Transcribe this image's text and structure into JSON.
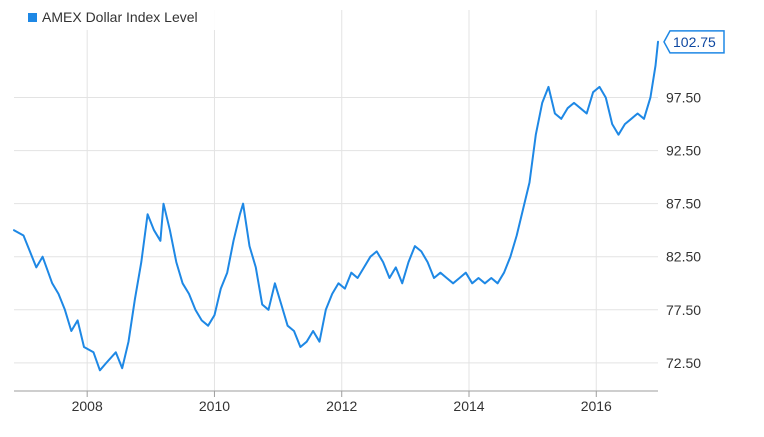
{
  "chart_data": {
    "type": "line",
    "title": "",
    "xlabel": "",
    "ylabel": "",
    "legend": {
      "placement": "top-left",
      "marker": "square"
    },
    "grid": true,
    "xlim": [
      2006.85,
      2016.97
    ],
    "ylim": [
      69.85,
      105.75
    ],
    "x_ticks": [
      2008,
      2010,
      2012,
      2014,
      2016
    ],
    "x_tick_labels": [
      "2008",
      "2010",
      "2012",
      "2014",
      "2016"
    ],
    "y_ticks": [
      72.5,
      77.5,
      82.5,
      87.5,
      92.5,
      97.5
    ],
    "y_tick_labels": [
      "72.50",
      "77.50",
      "82.50",
      "87.50",
      "92.50",
      "97.50"
    ],
    "last_value_label": "102.75",
    "series": [
      {
        "name": "AMEX Dollar Index Level",
        "color": "#1e88e5",
        "x": [
          2006.85,
          2007.0,
          2007.1,
          2007.2,
          2007.3,
          2007.45,
          2007.55,
          2007.65,
          2007.75,
          2007.85,
          2007.95,
          2008.1,
          2008.2,
          2008.3,
          2008.45,
          2008.55,
          2008.65,
          2008.75,
          2008.85,
          2008.95,
          2009.05,
          2009.15,
          2009.2,
          2009.3,
          2009.4,
          2009.5,
          2009.6,
          2009.7,
          2009.8,
          2009.9,
          2010.0,
          2010.1,
          2010.2,
          2010.3,
          2010.4,
          2010.45,
          2010.55,
          2010.65,
          2010.75,
          2010.85,
          2010.95,
          2011.05,
          2011.15,
          2011.25,
          2011.35,
          2011.45,
          2011.55,
          2011.65,
          2011.75,
          2011.85,
          2011.95,
          2012.05,
          2012.15,
          2012.25,
          2012.35,
          2012.45,
          2012.55,
          2012.65,
          2012.75,
          2012.85,
          2012.95,
          2013.05,
          2013.15,
          2013.25,
          2013.35,
          2013.45,
          2013.55,
          2013.65,
          2013.75,
          2013.85,
          2013.95,
          2014.05,
          2014.15,
          2014.25,
          2014.35,
          2014.45,
          2014.55,
          2014.65,
          2014.75,
          2014.85,
          2014.95,
          2015.05,
          2015.15,
          2015.25,
          2015.35,
          2015.45,
          2015.55,
          2015.65,
          2015.75,
          2015.85,
          2015.95,
          2016.05,
          2016.15,
          2016.25,
          2016.35,
          2016.45,
          2016.55,
          2016.65,
          2016.75,
          2016.85,
          2016.93,
          2016.97
        ],
        "values": [
          85.0,
          84.5,
          83.0,
          81.5,
          82.5,
          80.0,
          79.0,
          77.5,
          75.5,
          76.5,
          74.0,
          73.5,
          71.8,
          72.5,
          73.5,
          72.0,
          74.5,
          78.5,
          82.0,
          86.5,
          85.0,
          84.0,
          87.5,
          85.0,
          82.0,
          80.0,
          79.0,
          77.5,
          76.5,
          76.0,
          77.0,
          79.5,
          81.0,
          84.0,
          86.5,
          87.5,
          83.5,
          81.5,
          78.0,
          77.5,
          80.0,
          78.0,
          76.0,
          75.5,
          74.0,
          74.5,
          75.5,
          74.5,
          77.5,
          79.0,
          80.0,
          79.5,
          81.0,
          80.5,
          81.5,
          82.5,
          83.0,
          82.0,
          80.5,
          81.5,
          80.0,
          82.0,
          83.5,
          83.0,
          82.0,
          80.5,
          81.0,
          80.5,
          80.0,
          80.5,
          81.0,
          80.0,
          80.5,
          80.0,
          80.5,
          80.0,
          81.0,
          82.5,
          84.5,
          87.0,
          89.5,
          94.0,
          97.0,
          98.5,
          96.0,
          95.5,
          96.5,
          97.0,
          96.5,
          96.0,
          98.0,
          98.5,
          97.5,
          95.0,
          94.0,
          95.0,
          95.5,
          96.0,
          95.5,
          97.5,
          100.5,
          102.75
        ]
      }
    ]
  }
}
